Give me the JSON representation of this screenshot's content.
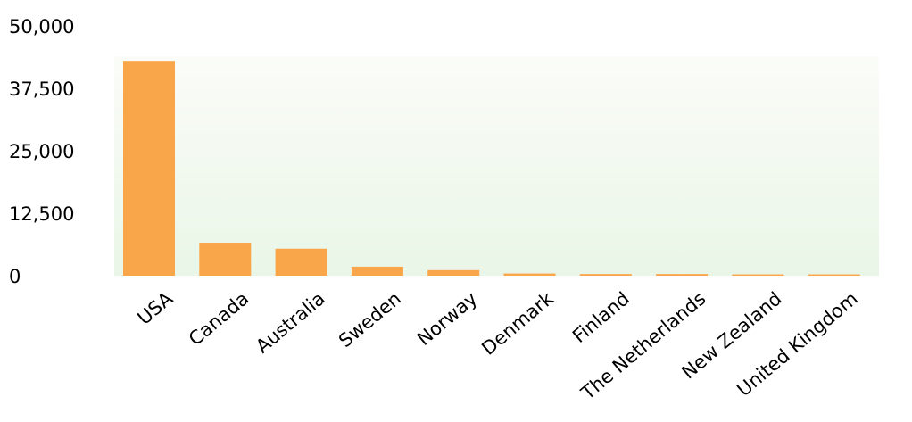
{
  "colors": {
    "bar": "#F9A54A",
    "plot_background_top": "#FBFCF8",
    "plot_background_bottom": "#E9F6E7",
    "text": "#000000"
  },
  "chart_data": {
    "type": "bar",
    "title": "",
    "xlabel": "",
    "ylabel": "",
    "categories": [
      "USA",
      "Canada",
      "Australia",
      "Sweden",
      "Norway",
      "Denmark",
      "Finland",
      "The Netherlands",
      "New Zealand",
      "United Kingdom"
    ],
    "values": [
      43000,
      6600,
      5400,
      1800,
      1100,
      430,
      330,
      330,
      260,
      260
    ],
    "ylim": [
      0,
      50000
    ],
    "yticks": [
      0,
      12500,
      25000,
      37500,
      50000
    ],
    "ytick_labels": [
      "0",
      "12,500",
      "25,000",
      "37,500",
      "50,000"
    ],
    "grid": false,
    "legend": "none"
  }
}
